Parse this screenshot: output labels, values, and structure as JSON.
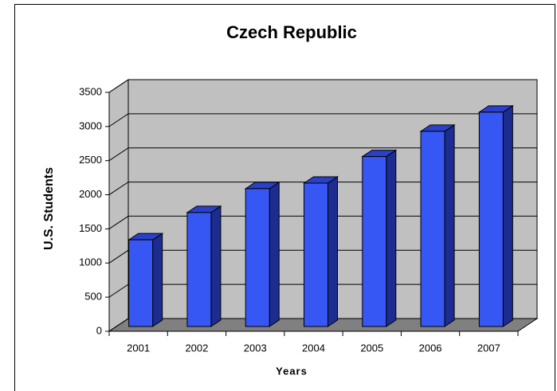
{
  "chart_data": {
    "type": "bar3d",
    "title": "Czech Republic",
    "x_label": "Years",
    "y_label": "U.S. Students",
    "categories": [
      "2001",
      "2002",
      "2003",
      "2004",
      "2005",
      "2006",
      "2007"
    ],
    "values": [
      1270,
      1670,
      2020,
      2100,
      2490,
      2860,
      3140
    ],
    "color": "#3657f4",
    "ylim": [
      0,
      3500
    ],
    "yticks": [
      0,
      500,
      1000,
      1500,
      2000,
      2500,
      3000,
      3500
    ],
    "grid": true
  }
}
